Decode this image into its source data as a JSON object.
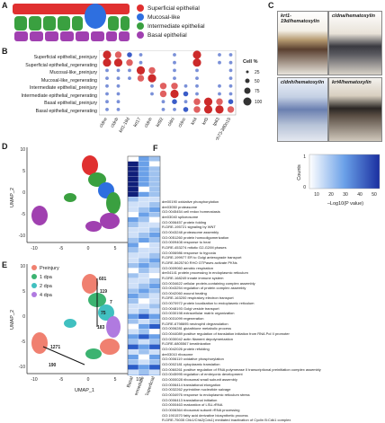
{
  "panels": {
    "A": "A",
    "B": "B",
    "C": "C",
    "D": "D",
    "E": "E",
    "F": "F"
  },
  "panelA": {
    "legend": [
      {
        "label": "Superficial epithelial",
        "color": "#e03030"
      },
      {
        "label": "Mucosal-like",
        "color": "#2e6fe0"
      },
      {
        "label": "Intermediate epithelial",
        "color": "#3aa040"
      },
      {
        "label": "Basal epithelial",
        "color": "#a040b0"
      }
    ]
  },
  "panelB": {
    "rows": [
      "Superficial epithelial_preinjury",
      "Superficial epithelial_regenerating",
      "Mucosal-like_preinjury",
      "Mucosal-like_regenerating",
      "Intermediate epithelial_preinjury",
      "Intermediate epithelial_regenerating",
      "Basal epithelial_preinjury",
      "Basal epithelial_regenerating"
    ],
    "columns": [
      "cldne",
      "cldnb",
      "krt1-19d",
      "krt17",
      "cldnh",
      "krt92",
      "cldni",
      "cldnc",
      "krt4",
      "krt5",
      "tp63",
      "si:ch73-380n15"
    ],
    "legend_title": "Cell %",
    "legend_values": [
      "25",
      "50",
      "75",
      "100"
    ]
  },
  "panelC": {
    "images": [
      {
        "label": "krt1-19d/hematoxylin"
      },
      {
        "label": "cldna/hematoxylin"
      },
      {
        "label": "cldnh/hematoxylin"
      },
      {
        "label": "krt4/hematoxylin"
      }
    ]
  },
  "panelD": {
    "xlabel": "UMAP_1",
    "ylabel": "UMAP_2",
    "xticks": [
      "-10",
      "-5",
      "0",
      "5",
      "10"
    ],
    "yticks": [
      "-10",
      "-5",
      "0",
      "5",
      "10"
    ]
  },
  "panelE": {
    "xlabel": "UMAP_1",
    "ylabel": "UMAP_2",
    "xticks": [
      "-10",
      "-5",
      "0",
      "5",
      "10"
    ],
    "yticks": [
      "-10",
      "-5",
      "0",
      "5",
      "10"
    ],
    "legend": [
      {
        "label": "Preinjury",
        "color": "#f08070"
      },
      {
        "label": "1 dpa",
        "color": "#3cb371"
      },
      {
        "label": "2 dpa",
        "color": "#40c0c0"
      },
      {
        "label": "4 dpa",
        "color": "#b07ae0"
      }
    ],
    "annotations": [
      "601",
      "119",
      "7",
      "75",
      "183",
      "1271",
      "190"
    ]
  },
  "panelF": {
    "columns": [
      "Basal",
      "Intermediate",
      "Superficial"
    ],
    "colorbar_label": "Counts",
    "axis_label": "–Log10(P value)",
    "ticks": [
      "10",
      "20",
      "30",
      "40",
      "50"
    ],
    "yticks": [
      "0",
      "1"
    ],
    "terms": [
      "dre00190 oxidative phosphorylation",
      "dre03050 proteasome",
      "GO:0045454 cell redox homeostasis",
      "dre03040 spliceosome",
      "GO:0006457 protein folding",
      "R-DRE-195721 signaling by WNT",
      "GO:0043248 proteasome assembly",
      "GO:0051260 protein homooligomerization",
      "GO:0009408 response to heat",
      "R-DRE-453274 mitotic G2-G2/M phases",
      "GO:0006986 response to hypoxia",
      "R-DRE-199977 ER to Golgi anterograde transport",
      "R-DRE-5625740 RHO GTPases activate PKNs",
      "GO:0009060 aerobic respiration",
      "dre04141 protein processing in endoplasmic reticulum",
      "R-DRE-168249 innate immune system",
      "GO:0034622 cellular protein-containing complex assembly",
      "GO:0043254 regulation of protein complex assembly",
      "GO:0042060 wound healing",
      "R-DRE-163200 respiratory electron transport",
      "GO:0070972 protein localization to endoplasmic reticulum",
      "GO:0048193 Golgi vesicle transport",
      "GO:0030198 extracellular matrix organization",
      "GO:0031099 regeneration",
      "R-DRE-6798695 neutrophil degranulation",
      "GO:0006281 glutathione metabolic process",
      "GO:0044089 positive regulation of translation initiation from RNA Pol II promoter",
      "GO:0030042 actin filament depolymerization",
      "R-DRE-6805567 keratinization",
      "GO:0042026 protein refolding",
      "dre03010 ribosome",
      "GO:0006119 oxidative phosphorylation",
      "GO:0002181 cytoplasmic translation",
      "GO:0060261 positive regulation of RNA polymerase II transcriptional preinitiation complex assembly",
      "GO:0045995 regulation of embryonic development",
      "GO:0000028 ribosomal small subunit assembly",
      "GO:0006414 translational elongation",
      "GO:0032262 pyrimidine nucleotide salvage",
      "GO:0034976 response to endoplasmic reticulum stress",
      "GO:0006413 translational initiation",
      "GO:0000463 maturation of LSU-rRNA",
      "GO:0006364 ribosomal subunit rRNA processing",
      "GO:1901570 fatty acid derivative biosynthetic process",
      "R-DRE-75035 Chk1/Chk2(Cds1) mediated inactivation of Cyclin B:Cdk1 complex"
    ]
  }
}
